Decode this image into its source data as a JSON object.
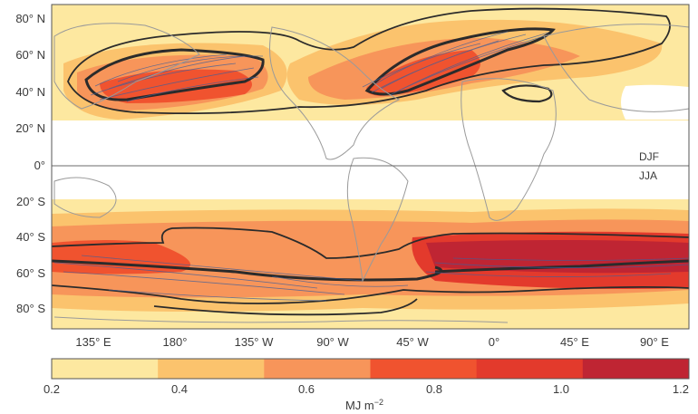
{
  "map": {
    "latitude_labels": [
      "80° N",
      "60° N",
      "40° N",
      "20° N",
      "0°",
      "20° S",
      "40° S",
      "60° S",
      "80° S"
    ],
    "longitude_labels": [
      "135° E",
      "180°",
      "135° W",
      "90° W",
      "45° W",
      "0°",
      "45° E",
      "90° E"
    ],
    "season_north": "DJF",
    "season_south": "JJA"
  },
  "colorbar": {
    "ticks": [
      "0.2",
      "0.4",
      "0.6",
      "0.8",
      "1.0",
      "1.2"
    ],
    "unit": "MJ m",
    "unit_exponent": "−2",
    "colors": [
      "#fde8a0",
      "#fbc36d",
      "#f7955a",
      "#f0532f",
      "#e33a2c",
      "#bf2533"
    ]
  }
}
